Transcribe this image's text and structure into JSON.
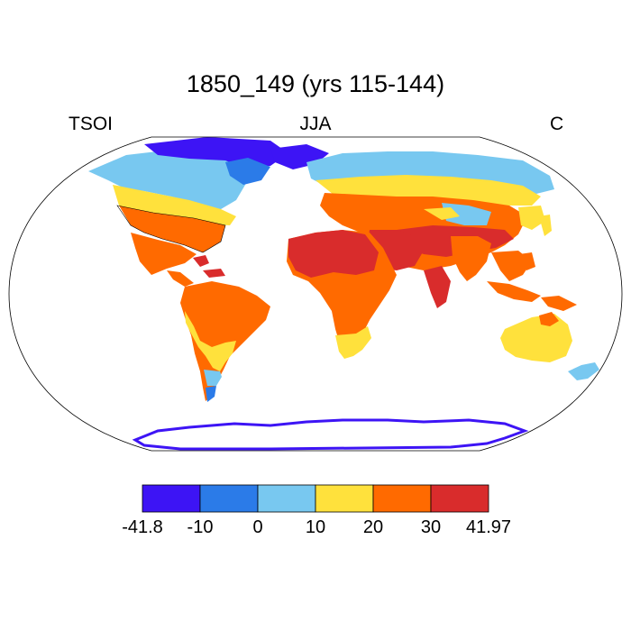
{
  "title": "1850_149 (yrs 115-144)",
  "left_label": "TSOI",
  "center_label": "JJA",
  "right_label": "C",
  "colorbar": {
    "colors": [
      "#3d14f5",
      "#2b7be8",
      "#78c8f0",
      "#ffe13c",
      "#ff6a00",
      "#d92c2c"
    ],
    "ticks": [
      "-41.8",
      "-10",
      "0",
      "10",
      "20",
      "30",
      "41.97"
    ]
  }
}
